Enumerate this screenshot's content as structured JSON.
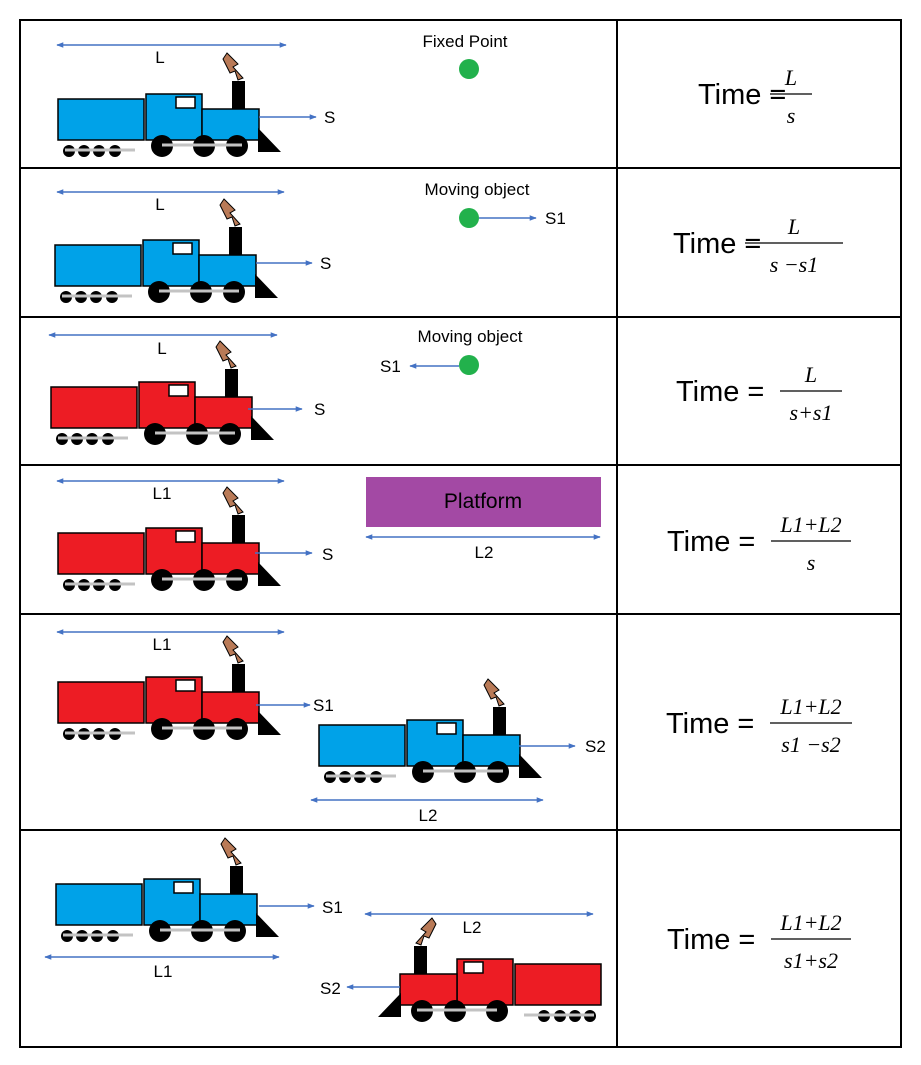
{
  "colors": {
    "blue_train": "#00a2e8",
    "red_train": "#ed1c24",
    "green_dot": "#22b14c",
    "arrow": "#4472c4",
    "platform": "#a349a4",
    "smoke": "#b97a57",
    "grid": "#000000"
  },
  "rows": [
    {
      "id": "fixed-point",
      "object_title": "Fixed Point",
      "train_length_label": "L",
      "train_speed_label": "S",
      "formula": {
        "lhs": "Time",
        "eq": "=",
        "num": "L",
        "den": "s"
      }
    },
    {
      "id": "moving-same",
      "object_title": "Moving object",
      "object_speed_label": "S1",
      "train_length_label": "L",
      "train_speed_label": "S",
      "formula": {
        "lhs": "Time",
        "eq": "=",
        "num": "L",
        "den": "s −s1"
      }
    },
    {
      "id": "moving-opposite",
      "object_title": "Moving object",
      "object_speed_label": "S1",
      "train_length_label": "L",
      "train_speed_label": "S",
      "formula": {
        "lhs": "Time",
        "eq": "=",
        "num": "L",
        "den": "s+s1"
      }
    },
    {
      "id": "platform",
      "platform_label": "Platform",
      "platform_length_label": "L2",
      "train_length_label": "L1",
      "train_speed_label": "S",
      "formula": {
        "lhs": "Time",
        "eq": "=",
        "num": "L1+L2",
        "den": "s"
      }
    },
    {
      "id": "two-trains-same",
      "train1_length_label": "L1",
      "train1_speed_label": "S1",
      "train2_length_label": "L2",
      "train2_speed_label": "S2",
      "formula": {
        "lhs": "Time",
        "eq": "=",
        "num": "L1+L2",
        "den": "s1 −s2"
      }
    },
    {
      "id": "two-trains-opposite",
      "train1_length_label": "L1",
      "train1_speed_label": "S1",
      "train2_length_label": "L2",
      "train2_speed_label": "S2",
      "formula": {
        "lhs": "Time",
        "eq": "=",
        "num": "L1+L2",
        "den": "s1+s2"
      }
    }
  ]
}
